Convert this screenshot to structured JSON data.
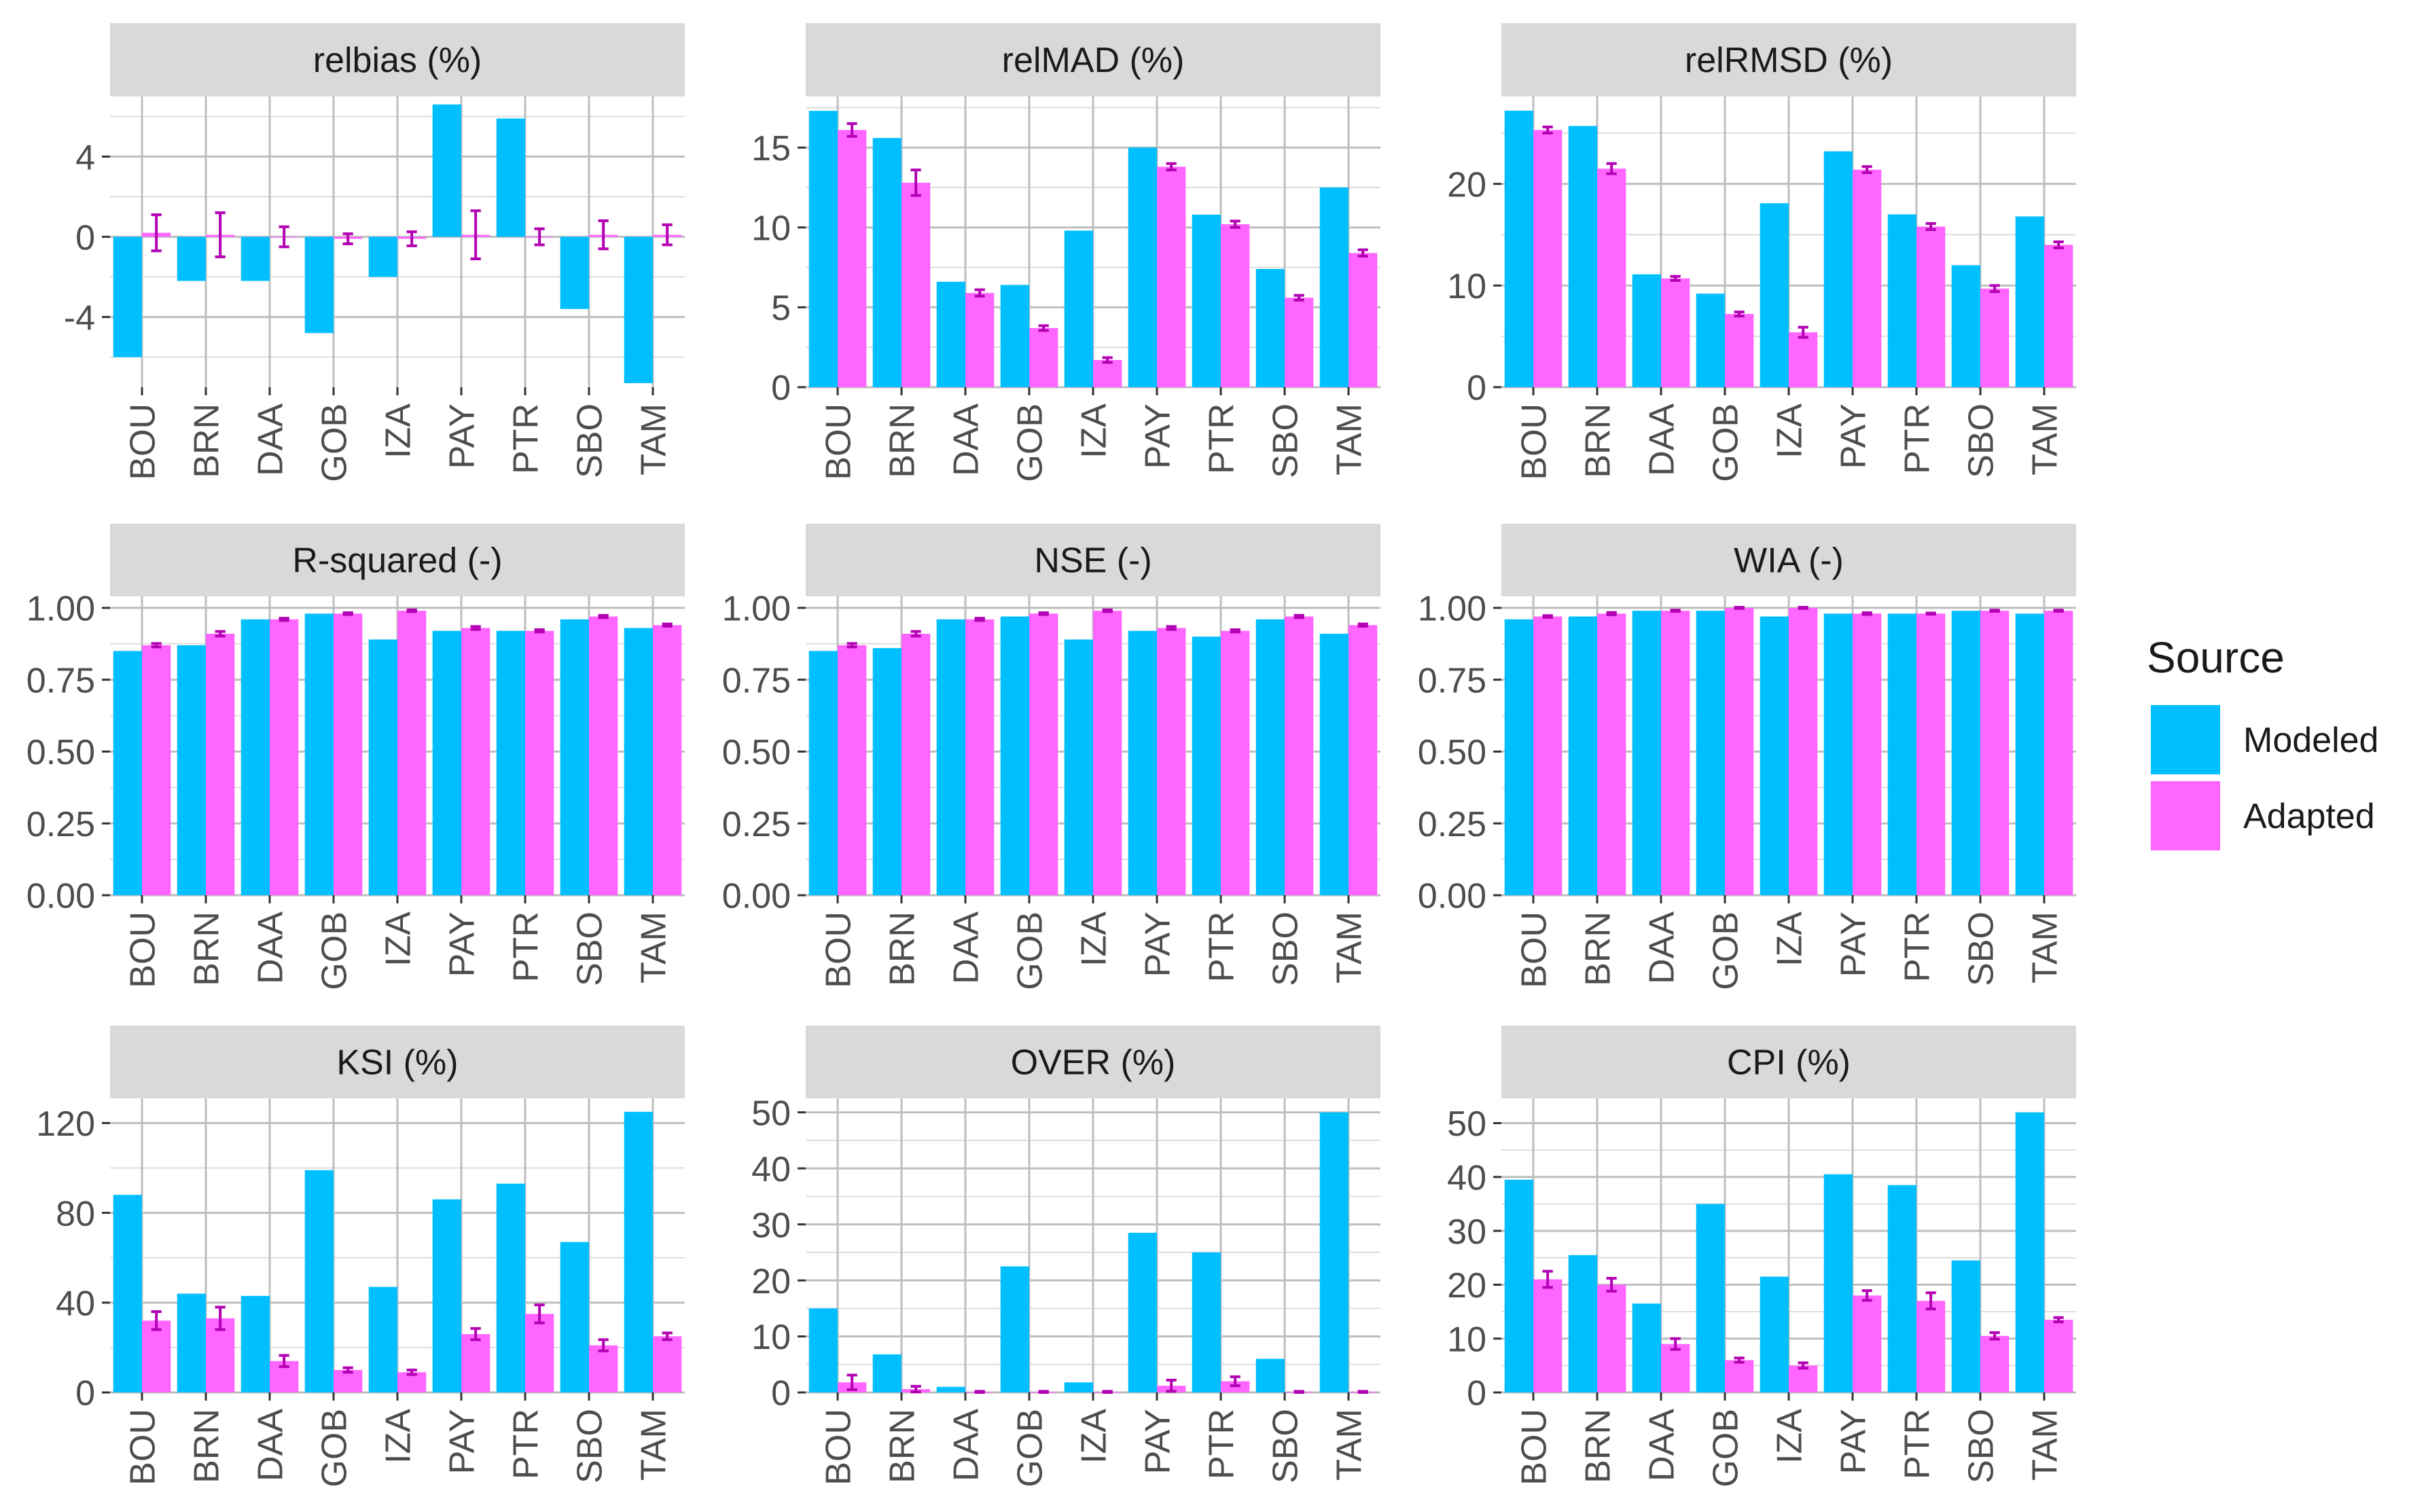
{
  "legend": {
    "title": "Source",
    "items": [
      {
        "label": "Modeled",
        "color": "#00BFFF"
      },
      {
        "label": "Adapted",
        "color": "#FF66FF"
      }
    ]
  },
  "colors": {
    "modeled": "#00BFFF",
    "adapted": "#FF66FF",
    "error_bar": "#B300B3",
    "strip": "#D9D9D9",
    "grid": "#BEBEBE"
  },
  "chart_data": [
    {
      "type": "bar",
      "title": "relbias (%)",
      "categories": [
        "BOU",
        "BRN",
        "DAA",
        "GOB",
        "IZA",
        "PAY",
        "PTR",
        "SBO",
        "TAM"
      ],
      "ylim": [
        -7.5,
        7.0
      ],
      "yticks": [
        -4,
        0,
        4
      ],
      "ytick_labels": [
        "-4",
        "0",
        "4"
      ],
      "series": [
        {
          "name": "Modeled",
          "values": [
            -6.0,
            -2.2,
            -2.2,
            -4.8,
            -2.0,
            6.6,
            5.9,
            -3.6,
            -7.3
          ]
        },
        {
          "name": "Adapted",
          "values": [
            0.2,
            0.1,
            0.0,
            -0.1,
            -0.1,
            0.1,
            0.0,
            0.1,
            0.1
          ],
          "errors": [
            0.9,
            1.1,
            0.5,
            0.25,
            0.35,
            1.2,
            0.4,
            0.7,
            0.5
          ]
        }
      ]
    },
    {
      "type": "bar",
      "title": "relMAD (%)",
      "categories": [
        "BOU",
        "BRN",
        "DAA",
        "GOB",
        "IZA",
        "PAY",
        "PTR",
        "SBO",
        "TAM"
      ],
      "ylim": [
        0,
        18.2
      ],
      "yticks": [
        0,
        5,
        10,
        15
      ],
      "ytick_labels": [
        "0",
        "5",
        "10",
        "15"
      ],
      "series": [
        {
          "name": "Modeled",
          "values": [
            17.3,
            15.6,
            6.6,
            6.4,
            9.8,
            15.0,
            10.8,
            7.4,
            12.5
          ]
        },
        {
          "name": "Adapted",
          "values": [
            16.1,
            12.8,
            5.9,
            3.7,
            1.7,
            13.8,
            10.2,
            5.6,
            8.4
          ],
          "errors": [
            0.4,
            0.8,
            0.2,
            0.15,
            0.15,
            0.2,
            0.2,
            0.15,
            0.2
          ]
        }
      ]
    },
    {
      "type": "bar",
      "title": "relRMSD (%)",
      "categories": [
        "BOU",
        "BRN",
        "DAA",
        "GOB",
        "IZA",
        "PAY",
        "PTR",
        "SBO",
        "TAM"
      ],
      "ylim": [
        0,
        28.6
      ],
      "yticks": [
        0,
        10,
        20
      ],
      "ytick_labels": [
        "0",
        "10",
        "20"
      ],
      "series": [
        {
          "name": "Modeled",
          "values": [
            27.2,
            25.7,
            11.1,
            9.2,
            18.1,
            23.2,
            17.0,
            12.0,
            16.8
          ]
        },
        {
          "name": "Adapted",
          "values": [
            25.3,
            21.5,
            10.7,
            7.2,
            5.4,
            21.4,
            15.8,
            9.7,
            14.0
          ],
          "errors": [
            0.3,
            0.5,
            0.2,
            0.2,
            0.5,
            0.3,
            0.3,
            0.3,
            0.3
          ]
        }
      ]
    },
    {
      "type": "bar",
      "title": "R-squared (-)",
      "categories": [
        "BOU",
        "BRN",
        "DAA",
        "GOB",
        "IZA",
        "PAY",
        "PTR",
        "SBO",
        "TAM"
      ],
      "ylim": [
        0,
        1.04
      ],
      "yticks": [
        0,
        0.25,
        0.5,
        0.75,
        1.0
      ],
      "ytick_labels": [
        "0.00",
        "0.25",
        "0.50",
        "0.75",
        "1.00"
      ],
      "series": [
        {
          "name": "Modeled",
          "values": [
            0.85,
            0.87,
            0.96,
            0.98,
            0.89,
            0.92,
            0.92,
            0.96,
            0.93
          ]
        },
        {
          "name": "Adapted",
          "values": [
            0.87,
            0.91,
            0.96,
            0.98,
            0.99,
            0.93,
            0.92,
            0.97,
            0.94
          ],
          "errors": [
            0.006,
            0.008,
            0.004,
            0.003,
            0.003,
            0.005,
            0.004,
            0.004,
            0.004
          ]
        }
      ]
    },
    {
      "type": "bar",
      "title": "NSE (-)",
      "categories": [
        "BOU",
        "BRN",
        "DAA",
        "GOB",
        "IZA",
        "PAY",
        "PTR",
        "SBO",
        "TAM"
      ],
      "ylim": [
        0,
        1.04
      ],
      "yticks": [
        0,
        0.25,
        0.5,
        0.75,
        1.0
      ],
      "ytick_labels": [
        "0.00",
        "0.25",
        "0.50",
        "0.75",
        "1.00"
      ],
      "series": [
        {
          "name": "Modeled",
          "values": [
            0.85,
            0.86,
            0.96,
            0.97,
            0.89,
            0.92,
            0.9,
            0.96,
            0.91
          ]
        },
        {
          "name": "Adapted",
          "values": [
            0.87,
            0.91,
            0.96,
            0.98,
            0.99,
            0.93,
            0.92,
            0.97,
            0.94
          ],
          "errors": [
            0.006,
            0.008,
            0.004,
            0.003,
            0.003,
            0.005,
            0.004,
            0.004,
            0.004
          ]
        }
      ]
    },
    {
      "type": "bar",
      "title": "WIA (-)",
      "categories": [
        "BOU",
        "BRN",
        "DAA",
        "GOB",
        "IZA",
        "PAY",
        "PTR",
        "SBO",
        "TAM"
      ],
      "ylim": [
        0,
        1.04
      ],
      "yticks": [
        0,
        0.25,
        0.5,
        0.75,
        1.0
      ],
      "ytick_labels": [
        "0.00",
        "0.25",
        "0.50",
        "0.75",
        "1.00"
      ],
      "series": [
        {
          "name": "Modeled",
          "values": [
            0.96,
            0.97,
            0.99,
            0.99,
            0.97,
            0.98,
            0.98,
            0.99,
            0.98
          ]
        },
        {
          "name": "Adapted",
          "values": [
            0.97,
            0.98,
            0.99,
            1.0,
            1.0,
            0.98,
            0.98,
            0.99,
            0.99
          ],
          "errors": [
            0.003,
            0.004,
            0.002,
            0.002,
            0.002,
            0.003,
            0.002,
            0.002,
            0.002
          ]
        }
      ]
    },
    {
      "type": "bar",
      "title": "KSI (%)",
      "categories": [
        "BOU",
        "BRN",
        "DAA",
        "GOB",
        "IZA",
        "PAY",
        "PTR",
        "SBO",
        "TAM"
      ],
      "ylim": [
        0,
        131
      ],
      "yticks": [
        0,
        40,
        80,
        120
      ],
      "ytick_labels": [
        "0",
        "40",
        "80",
        "120"
      ],
      "series": [
        {
          "name": "Modeled",
          "values": [
            88,
            44,
            43,
            99,
            47,
            86,
            93,
            67,
            125
          ]
        },
        {
          "name": "Adapted",
          "values": [
            32,
            33,
            14,
            10,
            9,
            26,
            35,
            21,
            25
          ],
          "errors": [
            4,
            5,
            2.5,
            1,
            1,
            2.5,
            4,
            2.5,
            1.5
          ]
        }
      ]
    },
    {
      "type": "bar",
      "title": "OVER (%)",
      "categories": [
        "BOU",
        "BRN",
        "DAA",
        "GOB",
        "IZA",
        "PAY",
        "PTR",
        "SBO",
        "TAM"
      ],
      "ylim": [
        0,
        52.5
      ],
      "yticks": [
        0,
        10,
        20,
        30,
        40,
        50
      ],
      "ytick_labels": [
        "0",
        "10",
        "20",
        "30",
        "40",
        "50"
      ],
      "series": [
        {
          "name": "Modeled",
          "values": [
            15,
            6.8,
            1.0,
            22.5,
            1.8,
            28.5,
            25,
            6,
            50
          ]
        },
        {
          "name": "Adapted",
          "values": [
            1.8,
            0.6,
            0.1,
            0.1,
            0.1,
            1.2,
            2.0,
            0.1,
            0.1
          ],
          "errors": [
            1.3,
            0.5,
            0.1,
            0.1,
            0.1,
            1.0,
            0.8,
            0.1,
            0.1
          ]
        }
      ]
    },
    {
      "type": "bar",
      "title": "CPI (%)",
      "categories": [
        "BOU",
        "BRN",
        "DAA",
        "GOB",
        "IZA",
        "PAY",
        "PTR",
        "SBO",
        "TAM"
      ],
      "ylim": [
        0,
        54.6
      ],
      "yticks": [
        0,
        10,
        20,
        30,
        40,
        50
      ],
      "ytick_labels": [
        "0",
        "10",
        "20",
        "30",
        "40",
        "50"
      ],
      "series": [
        {
          "name": "Modeled",
          "values": [
            39.5,
            25.5,
            16.5,
            35,
            21.5,
            40.5,
            38.5,
            24.5,
            52
          ]
        },
        {
          "name": "Adapted",
          "values": [
            21,
            20,
            9,
            6,
            5,
            18,
            17,
            10.5,
            13.5
          ],
          "errors": [
            1.5,
            1.2,
            1.0,
            0.4,
            0.5,
            0.9,
            1.5,
            0.6,
            0.4
          ]
        }
      ]
    }
  ]
}
